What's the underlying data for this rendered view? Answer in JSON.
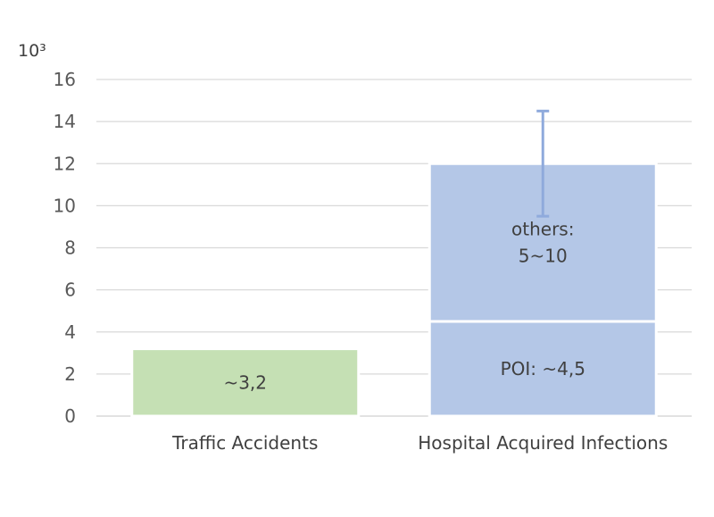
{
  "chart_data": {
    "type": "bar",
    "stacked": true,
    "unit_label": "10³",
    "ylim": [
      0,
      16
    ],
    "yticks": [
      0,
      2,
      4,
      6,
      8,
      10,
      12,
      14,
      16
    ],
    "grid": true,
    "categories": [
      "Traffic Accidents",
      "Hospital Acquired Infections"
    ],
    "bars": [
      {
        "category": "Traffic Accidents",
        "segments": [
          {
            "start": 0,
            "end": 3.2,
            "label_lines": [
              "~3,2"
            ],
            "color": "#c5e0b4"
          }
        ]
      },
      {
        "category": "Hospital Acquired Infections",
        "segments": [
          {
            "start": 0,
            "end": 4.5,
            "label_lines": [
              "POI: ~4,5"
            ],
            "color": "#b4c7e7"
          },
          {
            "start": 4.5,
            "end": 12,
            "label_lines": [
              "others:",
              "5~10"
            ],
            "color": "#b4c7e7"
          }
        ],
        "error_bar": {
          "low": 9.5,
          "high": 14.5,
          "color": "#8faadc"
        }
      }
    ],
    "colors": {
      "grid": "#d9d9d9",
      "axis": "#d9d9d9"
    }
  }
}
